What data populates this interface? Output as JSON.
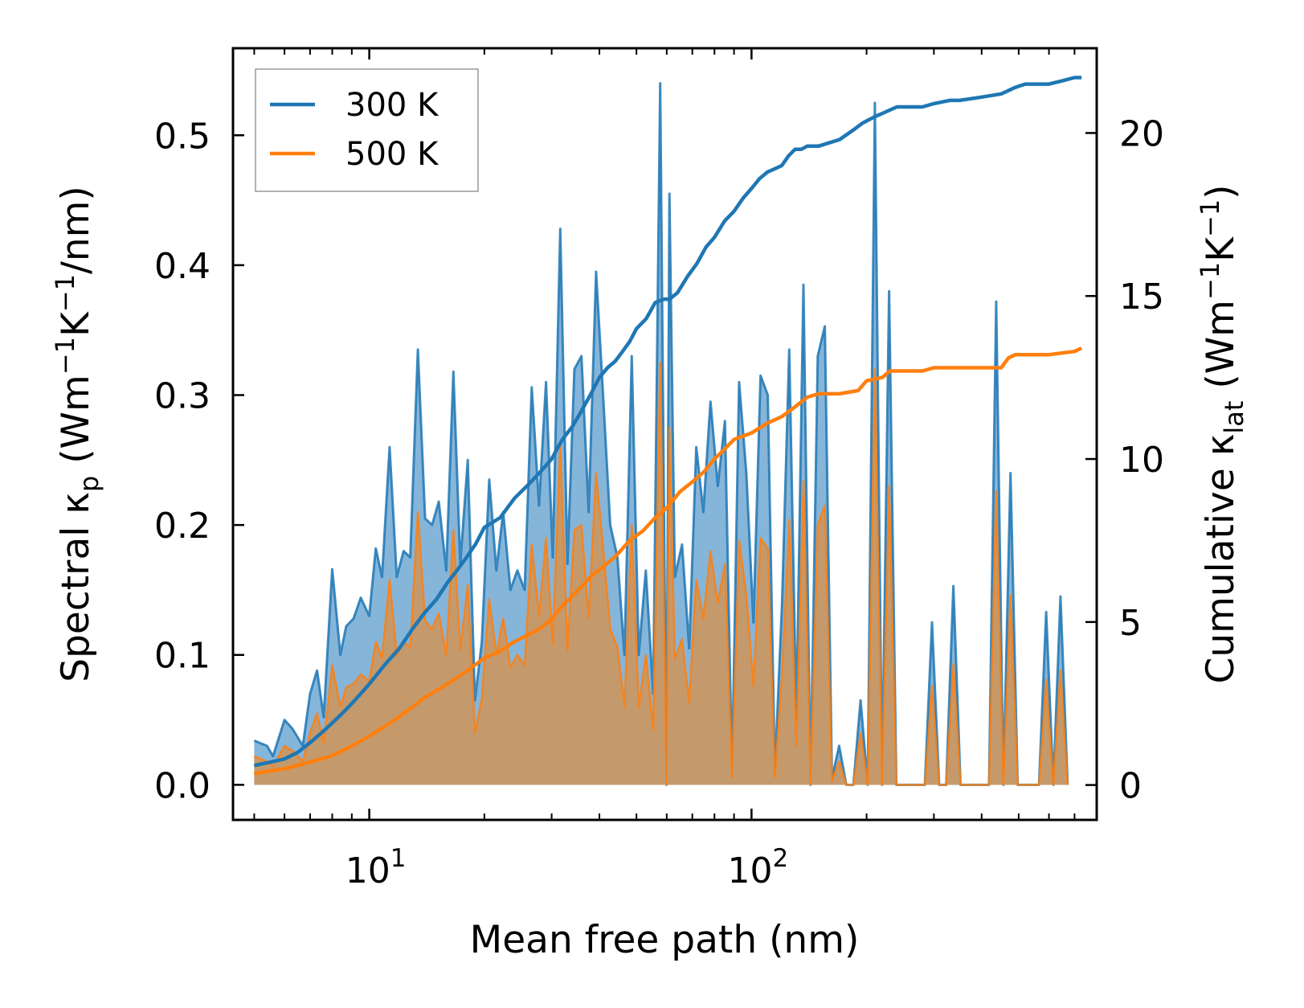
{
  "chart_data": {
    "type": "area+line",
    "xlabel": "Mean free path (nm)",
    "ylabel_left": {
      "prefix": "Spectral κ",
      "sub": "p",
      "mid": " (Wm",
      "sup1": "−1",
      "mid2": "K",
      "sup2": "−1",
      "suffix": "/nm)"
    },
    "ylabel_right": {
      "prefix": "Cumulative κ",
      "sub": "lat",
      "mid": " (Wm",
      "sup1": "−1",
      "mid2": "K",
      "sup2": "−1",
      "suffix": ")"
    },
    "xscale": "log",
    "xlim": [
      4.4,
      800
    ],
    "ylim_left": [
      -0.027,
      0.567
    ],
    "ylim_right": [
      -1.07,
      22.6
    ],
    "yticks_left": [
      0.0,
      0.1,
      0.2,
      0.3,
      0.4,
      0.5
    ],
    "yticks_left_labels": [
      "0.0",
      "0.1",
      "0.2",
      "0.3",
      "0.4",
      "0.5"
    ],
    "yticks_right": [
      0,
      5,
      10,
      15,
      20
    ],
    "yticks_right_labels": [
      "0",
      "5",
      "10",
      "15",
      "20"
    ],
    "xticks_major": [
      10,
      100
    ],
    "xticks_major_labels": [
      {
        "base": "10",
        "exp": "1"
      },
      {
        "base": "10",
        "exp": "2"
      }
    ],
    "legend": {
      "position": "upper-left",
      "entries": [
        {
          "label": "300 K",
          "color": "#1f77b4"
        },
        {
          "label": "500 K",
          "color": "#ff7f0e"
        }
      ]
    },
    "series": [
      {
        "name": "300 K",
        "color": "#1f77b4",
        "fill_color": "#7fb1d8",
        "spectral_x": [
          5.0,
          5.4,
          5.6,
          6.0,
          6.3,
          6.7,
          7.0,
          7.3,
          7.6,
          8.0,
          8.4,
          8.7,
          9.1,
          9.5,
          10.0,
          10.4,
          10.8,
          11.3,
          11.8,
          12.3,
          12.8,
          13.4,
          14.0,
          14.6,
          15.2,
          15.9,
          16.6,
          17.3,
          18.1,
          18.9,
          19.7,
          20.6,
          21.5,
          22.4,
          23.4,
          24.4,
          25.5,
          26.6,
          27.8,
          29.0,
          30.2,
          31.6,
          33.0,
          34.4,
          35.9,
          37.5,
          39.2,
          40.9,
          42.7,
          44.6,
          46.5,
          48.6,
          50.7,
          52.9,
          55.3,
          57.7,
          59.9,
          61.0,
          63.0,
          65.8,
          68.7,
          71.7,
          74.8,
          78.1,
          81.6,
          85.2,
          88.9,
          92.8,
          96.9,
          101.2,
          105.6,
          110.3,
          115.1,
          120.2,
          125.5,
          131.0,
          136.7,
          142.7,
          149.0,
          155.5,
          162.4,
          169.5,
          177.0,
          184.8,
          192.9,
          201.4,
          210.2,
          219.5,
          229.1,
          239.2,
          249.7,
          260.7,
          272.1,
          284.1,
          296.6,
          309.6,
          323.2,
          337.4,
          352.2,
          367.7,
          383.8,
          400.7,
          418.3,
          436.7,
          455.9,
          475.9,
          496.8,
          518.6,
          541.4,
          565.2,
          590.0,
          616.0,
          643.1,
          671.3,
          700.8,
          731.6
        ],
        "spectral_y": [
          0.034,
          0.03,
          0.022,
          0.05,
          0.043,
          0.03,
          0.07,
          0.088,
          0.052,
          0.166,
          0.1,
          0.122,
          0.128,
          0.144,
          0.13,
          0.182,
          0.16,
          0.26,
          0.16,
          0.18,
          0.175,
          0.335,
          0.205,
          0.2,
          0.218,
          0.165,
          0.318,
          0.17,
          0.25,
          0.065,
          0.11,
          0.235,
          0.165,
          0.21,
          0.15,
          0.165,
          0.15,
          0.306,
          0.215,
          0.31,
          0.175,
          0.428,
          0.17,
          0.32,
          0.33,
          0.21,
          0.395,
          0.3,
          0.2,
          0.175,
          0.1,
          0.33,
          0.1,
          0.165,
          0.07,
          0.54,
          0.0,
          0.455,
          0.16,
          0.185,
          0.105,
          0.26,
          0.21,
          0.295,
          0.23,
          0.28,
          0.01,
          0.31,
          0.24,
          0.125,
          0.315,
          0.3,
          0.01,
          0.14,
          0.335,
          0.05,
          0.385,
          0.0,
          0.33,
          0.353,
          0.005,
          0.03,
          0.0,
          0.0,
          0.065,
          0.0,
          0.525,
          0.0,
          0.38,
          0.0,
          0.0,
          0.0,
          0.0,
          0.0,
          0.125,
          0.0,
          0.0,
          0.153,
          0.0,
          0.0,
          0.0,
          0.0,
          0.0,
          0.372,
          0.0,
          0.24,
          0.0,
          0.0,
          0.0,
          0.0,
          0.133,
          0.0,
          0.145,
          0.0
        ],
        "cumulative_x": [
          5.0,
          5.5,
          6.0,
          6.5,
          7.0,
          7.5,
          8.0,
          8.5,
          9.0,
          9.5,
          10.0,
          11.0,
          12.0,
          13.0,
          14.0,
          15.0,
          16.0,
          17.0,
          18.0,
          19.0,
          20.0,
          22.0,
          24.0,
          26.0,
          28.0,
          30.0,
          32.0,
          34.0,
          36.0,
          38.0,
          40.0,
          42.0,
          44.0,
          46.0,
          48.0,
          50.0,
          53.0,
          56.0,
          59.0,
          61.0,
          64.0,
          68.0,
          72.0,
          76.0,
          80.0,
          85.0,
          90.0,
          95.0,
          100.0,
          105.0,
          110.0,
          115.0,
          120.0,
          125.0,
          130.0,
          135.0,
          140.0,
          150.0,
          170.0,
          185.0,
          195.0,
          210.0,
          220.0,
          240.0,
          280.0,
          300.0,
          330.0,
          350.0,
          400.0,
          450.0,
          470.0,
          490.0,
          520.0,
          600.0,
          650.0,
          700.0,
          730.0
        ],
        "cumulative_y": [
          0.6,
          0.7,
          0.8,
          1.0,
          1.3,
          1.6,
          1.9,
          2.2,
          2.5,
          2.8,
          3.1,
          3.7,
          4.2,
          4.8,
          5.3,
          5.7,
          6.2,
          6.6,
          7.0,
          7.4,
          7.9,
          8.2,
          8.8,
          9.2,
          9.6,
          10.0,
          10.6,
          11.0,
          11.5,
          12.0,
          12.5,
          12.8,
          13.0,
          13.3,
          13.6,
          14.0,
          14.3,
          14.8,
          14.9,
          14.9,
          15.1,
          15.6,
          16.0,
          16.5,
          16.8,
          17.3,
          17.6,
          18.0,
          18.3,
          18.6,
          18.8,
          18.9,
          19.0,
          19.3,
          19.5,
          19.5,
          19.6,
          19.6,
          19.8,
          20.1,
          20.3,
          20.5,
          20.6,
          20.8,
          20.8,
          20.9,
          21.0,
          21.0,
          21.1,
          21.2,
          21.3,
          21.4,
          21.5,
          21.5,
          21.6,
          21.7,
          21.7
        ]
      },
      {
        "name": "500 K",
        "color": "#ff7f0e",
        "fill_color": "#c49a6c",
        "spectral_x": [
          5.0,
          5.4,
          5.6,
          6.0,
          6.3,
          6.7,
          7.0,
          7.3,
          7.6,
          8.0,
          8.4,
          8.7,
          9.1,
          9.5,
          10.0,
          10.4,
          10.8,
          11.3,
          11.8,
          12.3,
          12.8,
          13.4,
          14.0,
          14.6,
          15.2,
          15.9,
          16.6,
          17.3,
          18.1,
          18.9,
          19.7,
          20.6,
          21.5,
          22.4,
          23.4,
          24.4,
          25.5,
          26.6,
          27.8,
          29.0,
          30.2,
          31.6,
          33.0,
          34.4,
          35.9,
          37.5,
          39.2,
          40.9,
          42.7,
          44.6,
          46.5,
          48.6,
          50.7,
          52.9,
          55.3,
          57.7,
          59.9,
          61.0,
          63.0,
          65.8,
          68.7,
          71.7,
          74.8,
          78.1,
          81.6,
          85.2,
          88.9,
          92.8,
          96.9,
          101.2,
          105.6,
          110.3,
          115.1,
          120.2,
          125.5,
          131.0,
          136.7,
          142.7,
          149.0,
          155.5,
          162.4,
          169.5,
          177.0,
          184.8,
          192.9,
          201.4,
          210.2,
          219.5,
          229.1,
          239.2,
          249.7,
          260.7,
          272.1,
          284.1,
          296.6,
          309.6,
          323.2,
          337.4,
          352.2,
          367.7,
          383.8,
          400.7,
          418.3,
          436.7,
          455.9,
          475.9,
          496.8,
          518.6,
          541.4,
          565.2,
          590.0,
          616.0,
          643.1,
          671.3,
          700.8,
          731.6
        ],
        "spectral_y": [
          0.022,
          0.018,
          0.014,
          0.03,
          0.026,
          0.018,
          0.04,
          0.055,
          0.032,
          0.092,
          0.06,
          0.075,
          0.078,
          0.085,
          0.08,
          0.11,
          0.098,
          0.158,
          0.1,
          0.11,
          0.106,
          0.21,
          0.126,
          0.12,
          0.132,
          0.1,
          0.196,
          0.104,
          0.154,
          0.04,
          0.066,
          0.143,
          0.1,
          0.128,
          0.09,
          0.1,
          0.092,
          0.185,
          0.13,
          0.19,
          0.108,
          0.262,
          0.104,
          0.196,
          0.2,
          0.128,
          0.24,
          0.183,
          0.12,
          0.106,
          0.06,
          0.2,
          0.06,
          0.1,
          0.042,
          0.325,
          0.0,
          0.275,
          0.097,
          0.112,
          0.063,
          0.158,
          0.128,
          0.18,
          0.14,
          0.17,
          0.006,
          0.188,
          0.146,
          0.076,
          0.19,
          0.182,
          0.006,
          0.085,
          0.204,
          0.03,
          0.234,
          0.0,
          0.2,
          0.215,
          0.003,
          0.018,
          0.0,
          0.0,
          0.04,
          0.0,
          0.32,
          0.0,
          0.23,
          0.0,
          0.0,
          0.0,
          0.0,
          0.0,
          0.076,
          0.0,
          0.0,
          0.093,
          0.0,
          0.0,
          0.0,
          0.0,
          0.0,
          0.226,
          0.0,
          0.146,
          0.0,
          0.0,
          0.0,
          0.0,
          0.081,
          0.0,
          0.088,
          0.0
        ],
        "cumulative_x": [
          5.0,
          6.0,
          7.0,
          8.0,
          9.0,
          10.0,
          11.0,
          12.0,
          13.0,
          14.0,
          15.0,
          16.0,
          17.0,
          18.0,
          19.0,
          20.0,
          22.0,
          24.0,
          26.0,
          28.0,
          30.0,
          32.0,
          34.0,
          36.0,
          38.0,
          40.0,
          44.0,
          48.0,
          52.0,
          56.0,
          60.0,
          65.0,
          70.0,
          75.0,
          80.0,
          85.0,
          90.0,
          100.0,
          110.0,
          120.0,
          130.0,
          140.0,
          150.0,
          170.0,
          190.0,
          200.0,
          220.0,
          230.0,
          280.0,
          300.0,
          350.0,
          450.0,
          470.0,
          490.0,
          600.0,
          700.0,
          730.0
        ],
        "cumulative_y": [
          0.35,
          0.5,
          0.7,
          0.9,
          1.2,
          1.5,
          1.8,
          2.1,
          2.4,
          2.7,
          2.9,
          3.1,
          3.3,
          3.5,
          3.7,
          3.9,
          4.1,
          4.4,
          4.6,
          4.8,
          5.1,
          5.5,
          5.8,
          6.1,
          6.4,
          6.6,
          7.0,
          7.5,
          7.8,
          8.2,
          8.5,
          9.0,
          9.3,
          9.6,
          10.0,
          10.3,
          10.6,
          10.8,
          11.1,
          11.3,
          11.6,
          11.9,
          12.0,
          12.0,
          12.1,
          12.4,
          12.5,
          12.7,
          12.7,
          12.8,
          12.8,
          12.8,
          13.1,
          13.2,
          13.2,
          13.3,
          13.4
        ]
      }
    ]
  }
}
